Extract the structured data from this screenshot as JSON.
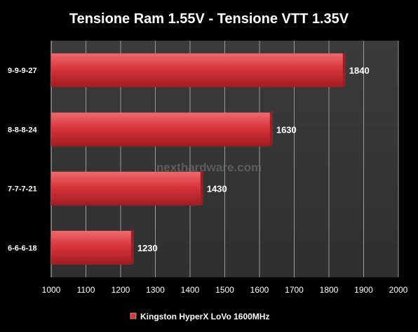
{
  "chart_data": {
    "type": "bar",
    "orientation": "horizontal",
    "title": "Tensione Ram 1.55V - Tensione VTT 1.35V",
    "categories": [
      "9-9-9-27",
      "8-8-8-24",
      "7-7-7-21",
      "6-6-6-18"
    ],
    "series": [
      {
        "name": "Kingston HyperX LoVo 1600MHz",
        "values": [
          1840,
          1630,
          1430,
          1230
        ]
      }
    ],
    "xlim": [
      1000,
      2000
    ],
    "xticks": [
      1000,
      1100,
      1200,
      1300,
      1400,
      1500,
      1600,
      1700,
      1800,
      1900,
      2000
    ],
    "grid": true,
    "legend_position": "bottom",
    "watermark": "nexthardware.com",
    "colors": {
      "background": "#000000",
      "plot_area": "#3b3b3b",
      "bar": "#d8353b",
      "bar_dark": "#a11c22",
      "bar_light": "#ef6a6e",
      "text": "#ffffff",
      "gridline": "#9a9a9a"
    }
  }
}
